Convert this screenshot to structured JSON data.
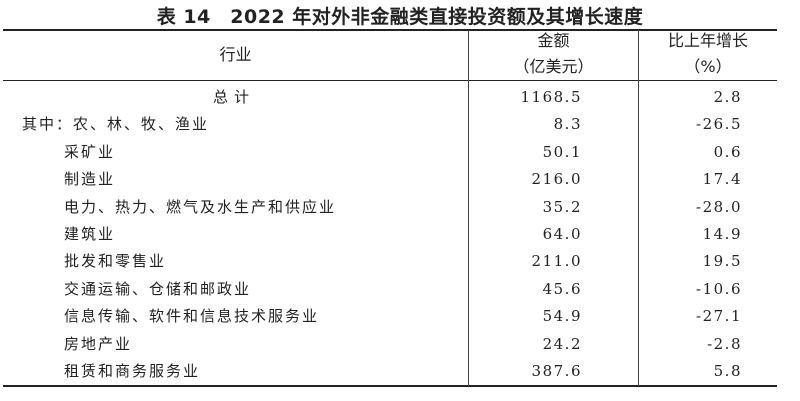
{
  "title": "表 14　2022 年对外非金融类直接投资额及其增长速度",
  "header": {
    "industry": "行业",
    "amount_line1": "金额",
    "amount_line2": "（亿美元）",
    "growth_line1": "比上年增长",
    "growth_line2": "（%）"
  },
  "rows": [
    {
      "label": "总计",
      "amount": "1168.5",
      "growth": "2.8"
    },
    {
      "label": "其中：农、林、牧、渔业",
      "amount": "8.3",
      "growth": "-26.5"
    },
    {
      "label": "采矿业",
      "amount": "50.1",
      "growth": "0.6"
    },
    {
      "label": "制造业",
      "amount": "216.0",
      "growth": "17.4"
    },
    {
      "label": "电力、热力、燃气及水生产和供应业",
      "amount": "35.2",
      "growth": "-28.0"
    },
    {
      "label": "建筑业",
      "amount": "64.0",
      "growth": "14.9"
    },
    {
      "label": "批发和零售业",
      "amount": "211.0",
      "growth": "19.5"
    },
    {
      "label": "交通运输、仓储和邮政业",
      "amount": "45.6",
      "growth": "-10.6"
    },
    {
      "label": "信息传输、软件和信息技术服务业",
      "amount": "54.9",
      "growth": "-27.1"
    },
    {
      "label": "房地产业",
      "amount": "24.2",
      "growth": "-2.8"
    },
    {
      "label": "租赁和商务服务业",
      "amount": "387.6",
      "growth": "5.8"
    }
  ]
}
